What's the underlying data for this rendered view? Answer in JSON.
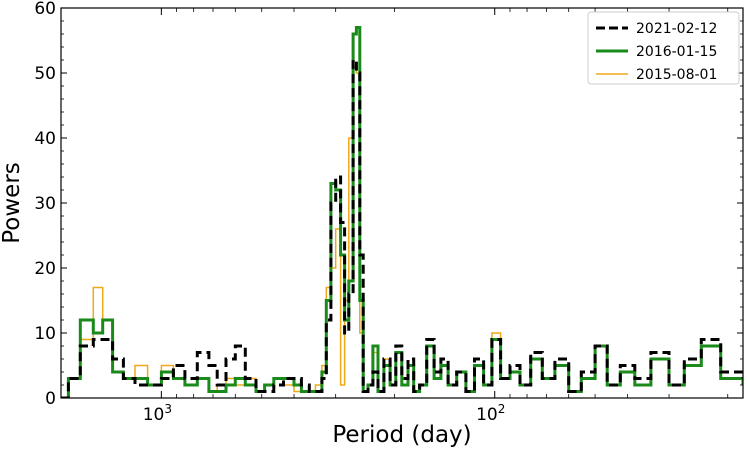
{
  "chart_data": {
    "type": "line",
    "drawstyle": "steps",
    "xlabel": "Period (day)",
    "ylabel": "Powers",
    "xscale": "log",
    "xaxis_inverted": true,
    "xlim": [
      2000,
      18
    ],
    "ylim": [
      0,
      60
    ],
    "yticks": [
      0,
      10,
      20,
      30,
      40,
      50,
      60
    ],
    "xticks": [
      {
        "value": 1000,
        "base": "10",
        "exp": "3"
      },
      {
        "value": 100,
        "base": "10",
        "exp": "2"
      }
    ],
    "grid": false,
    "legend": {
      "position": "top-right"
    },
    "series": [
      {
        "name": "2021-02-12",
        "color": "#000000",
        "style": "dashed",
        "x": [
          2000,
          1900,
          1750,
          1600,
          1500,
          1400,
          1300,
          1200,
          1100,
          1000,
          920,
          850,
          780,
          720,
          680,
          640,
          600,
          560,
          520,
          490,
          460,
          430,
          400,
          380,
          360,
          345,
          330,
          320,
          310,
          300,
          290,
          282,
          274,
          266,
          260,
          254,
          248,
          240,
          232,
          224,
          215,
          206,
          198,
          190,
          182,
          175,
          168,
          160,
          152,
          145,
          138,
          130,
          122,
          115,
          108,
          102,
          96,
          90,
          84,
          78,
          72,
          66,
          60,
          55,
          50,
          46,
          42,
          38,
          34,
          30,
          27,
          24,
          21,
          18
        ],
        "y": [
          0,
          3,
          8,
          9,
          9,
          6,
          3,
          2,
          2,
          3,
          5,
          3,
          7,
          5,
          2,
          6,
          8,
          3,
          1,
          1,
          2,
          3,
          3,
          2,
          1,
          1,
          3,
          12,
          30,
          34,
          27,
          10,
          16,
          52,
          50,
          22,
          1,
          2,
          4,
          1,
          6,
          2,
          8,
          3,
          6,
          1,
          2,
          9,
          4,
          6,
          2,
          4,
          1,
          6,
          2,
          9,
          3,
          5,
          2,
          7,
          3,
          6,
          1,
          4,
          8,
          2,
          5,
          3,
          7,
          2,
          6,
          9,
          4,
          3
        ]
      },
      {
        "name": "2016-01-15",
        "color": "#1a8a1a",
        "style": "solid",
        "x": [
          2000,
          1900,
          1750,
          1600,
          1500,
          1400,
          1300,
          1200,
          1100,
          1000,
          920,
          850,
          780,
          720,
          680,
          640,
          600,
          560,
          520,
          490,
          460,
          430,
          400,
          380,
          360,
          345,
          330,
          320,
          310,
          300,
          290,
          282,
          274,
          266,
          260,
          254,
          248,
          240,
          232,
          224,
          215,
          206,
          198,
          190,
          182,
          175,
          168,
          160,
          152,
          145,
          138,
          130,
          122,
          115,
          108,
          102,
          96,
          90,
          84,
          78,
          72,
          66,
          60,
          55,
          50,
          46,
          42,
          38,
          34,
          30,
          27,
          24,
          21,
          18
        ],
        "y": [
          0,
          3,
          12,
          10,
          12,
          4,
          3,
          3,
          2,
          4,
          3,
          2,
          3,
          1,
          1,
          2,
          3,
          2,
          1,
          2,
          3,
          3,
          2,
          1,
          1,
          1,
          4,
          15,
          33,
          32,
          22,
          12,
          18,
          56,
          57,
          15,
          1,
          2,
          8,
          1,
          5,
          2,
          7,
          2,
          5,
          1,
          2,
          8,
          3,
          5,
          2,
          4,
          1,
          5,
          2,
          9,
          3,
          4,
          2,
          6,
          3,
          5,
          1,
          3,
          8,
          2,
          4,
          2,
          6,
          2,
          5,
          8,
          3,
          2
        ]
      },
      {
        "name": "2015-08-01",
        "color": "#f0a818",
        "style": "solid",
        "x": [
          2000,
          1900,
          1750,
          1600,
          1500,
          1400,
          1300,
          1200,
          1100,
          1000,
          920,
          850,
          780,
          720,
          680,
          640,
          600,
          560,
          520,
          490,
          460,
          430,
          400,
          380,
          360,
          345,
          330,
          320,
          310,
          300,
          290,
          282,
          274,
          266,
          260,
          254,
          248,
          240,
          232,
          224,
          215,
          206,
          198,
          190,
          182,
          175,
          168,
          160,
          152,
          145,
          138,
          130,
          122,
          115,
          108,
          102,
          96,
          90,
          84,
          78,
          72,
          66,
          60,
          55,
          50,
          46,
          42,
          38,
          34,
          30,
          27,
          24,
          21,
          18
        ],
        "y": [
          0,
          3,
          9,
          17,
          12,
          4,
          3,
          5,
          2,
          5,
          3,
          2,
          3,
          1,
          2,
          3,
          2,
          3,
          1,
          2,
          3,
          2,
          1,
          1,
          1,
          2,
          5,
          17,
          20,
          26,
          2,
          15,
          40,
          51,
          50,
          10,
          1,
          2,
          7,
          1,
          6,
          2,
          7,
          2,
          5,
          1,
          2,
          8,
          3,
          5,
          2,
          4,
          1,
          5,
          2,
          10,
          3,
          4,
          2,
          6,
          3,
          5,
          1,
          3,
          8,
          2,
          4,
          2,
          6,
          2,
          5,
          8,
          3,
          2
        ]
      }
    ]
  }
}
